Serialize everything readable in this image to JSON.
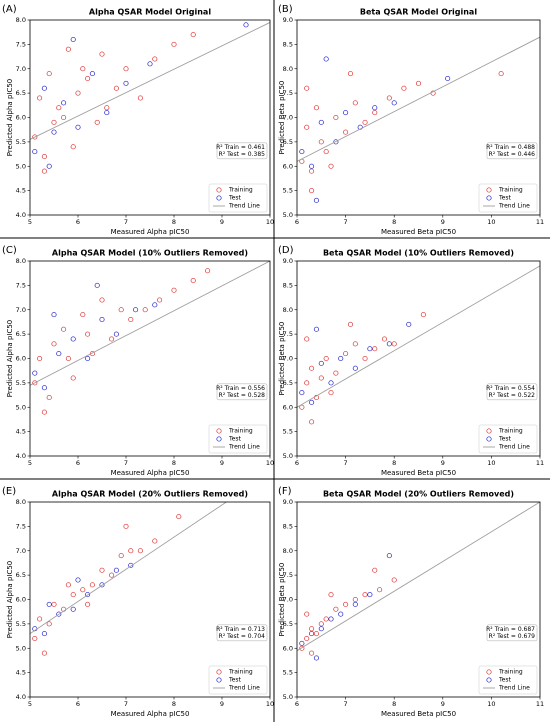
{
  "chart_data": [
    {
      "type": "scatter",
      "label": "(A)",
      "title": "Alpha QSAR Model Original",
      "xlabel": "Measured Alpha pIC50",
      "ylabel": "Predicted Alpha pIC50",
      "xlim": [
        5,
        10
      ],
      "ylim": [
        4,
        8
      ],
      "xticks": [
        5,
        6,
        7,
        8,
        9,
        10
      ],
      "yticks": [
        {
          "value": 4,
          "label": "4.0"
        },
        {
          "value": 4.5,
          "label": "4.5"
        },
        {
          "value": 5,
          "label": "5.0"
        },
        {
          "value": 5.5,
          "label": "5.5"
        },
        {
          "value": 6,
          "label": "6.0"
        },
        {
          "value": 6.5,
          "label": "6.5"
        },
        {
          "value": 7,
          "label": "7.0"
        },
        {
          "value": 7.5,
          "label": "7.5"
        },
        {
          "value": 8,
          "label": "8.0"
        }
      ],
      "annotations": [
        "R² Train = 0.461",
        "R² Test = 0.385"
      ],
      "legend": "lower right",
      "series": [
        {
          "name": "Training",
          "color": "#e03030",
          "x": [
            5.1,
            5.2,
            5.3,
            5.4,
            5.5,
            5.6,
            5.8,
            5.9,
            6.0,
            6.2,
            6.4,
            6.5,
            6.8,
            7.0,
            7.3,
            7.6,
            8.0,
            8.4,
            5.3,
            5.7,
            6.1,
            6.6
          ],
          "values": [
            5.6,
            6.4,
            5.2,
            6.9,
            5.9,
            6.2,
            7.4,
            5.4,
            6.5,
            6.8,
            5.9,
            7.3,
            6.6,
            7.0,
            6.4,
            7.2,
            7.5,
            7.7,
            4.9,
            6.0,
            7.0,
            6.2
          ]
        },
        {
          "name": "Test",
          "color": "#2020d0",
          "x": [
            5.1,
            5.3,
            5.5,
            5.7,
            6.0,
            6.3,
            6.6,
            7.0,
            7.5,
            5.9,
            9.5,
            5.4
          ],
          "values": [
            5.3,
            6.6,
            5.7,
            6.3,
            5.8,
            6.9,
            6.1,
            6.7,
            7.1,
            7.6,
            7.9,
            5.0
          ]
        },
        {
          "name": "Trend Line",
          "color": "#a0a0a0",
          "type": "line",
          "x": [
            5,
            10
          ],
          "values": [
            5.55,
            7.95
          ]
        }
      ]
    },
    {
      "type": "scatter",
      "label": "(B)",
      "title": "Beta QSAR Model Original",
      "xlabel": "Measured Beta pIC50",
      "ylabel": "Predicted Beta pIC50",
      "xlim": [
        6,
        11
      ],
      "ylim": [
        5,
        9
      ],
      "xticks": [
        6,
        7,
        8,
        9,
        10,
        11
      ],
      "yticks": [
        {
          "value": 5,
          "label": "5.0"
        },
        {
          "value": 5.5,
          "label": "5.5"
        },
        {
          "value": 6,
          "label": "6.0"
        },
        {
          "value": 6.5,
          "label": "6.5"
        },
        {
          "value": 7,
          "label": "7.0"
        },
        {
          "value": 7.5,
          "label": "7.5"
        },
        {
          "value": 8,
          "label": "8.0"
        },
        {
          "value": 8.5,
          "label": "8.5"
        },
        {
          "value": 9,
          "label": "9.0"
        }
      ],
      "annotations": [
        "R² Train = 0.488",
        "R² Test = 0.446"
      ],
      "legend": "lower right",
      "series": [
        {
          "name": "Training",
          "color": "#e03030",
          "x": [
            6.1,
            6.2,
            6.3,
            6.4,
            6.5,
            6.6,
            6.8,
            7.0,
            7.2,
            7.4,
            7.6,
            7.9,
            8.2,
            8.5,
            8.8,
            6.3,
            6.7,
            7.1,
            10.2,
            6.2
          ],
          "values": [
            6.1,
            6.8,
            5.9,
            7.2,
            6.5,
            6.3,
            7.0,
            6.7,
            7.3,
            6.9,
            7.1,
            7.4,
            7.6,
            7.7,
            7.5,
            5.5,
            6.0,
            7.9,
            7.9,
            7.6
          ]
        },
        {
          "name": "Test",
          "color": "#2020d0",
          "x": [
            6.1,
            6.3,
            6.5,
            6.8,
            7.0,
            7.3,
            7.6,
            8.0,
            9.1,
            6.4,
            6.6
          ],
          "values": [
            6.3,
            6.0,
            6.9,
            6.5,
            7.1,
            6.8,
            7.2,
            7.3,
            7.8,
            5.3,
            8.2
          ]
        },
        {
          "name": "Trend Line",
          "color": "#a0a0a0",
          "type": "line",
          "x": [
            6,
            11
          ],
          "values": [
            6.1,
            8.65
          ]
        }
      ]
    },
    {
      "type": "scatter",
      "label": "(C)",
      "title": "Alpha QSAR Model (10% Outliers Removed)",
      "xlabel": "Measured Alpha pIC50",
      "ylabel": "Predicted Alpha pIC50",
      "xlim": [
        5,
        10
      ],
      "ylim": [
        4,
        8
      ],
      "xticks": [
        5,
        6,
        7,
        8,
        9,
        10
      ],
      "yticks": [
        {
          "value": 4,
          "label": "4.0"
        },
        {
          "value": 4.5,
          "label": "4.5"
        },
        {
          "value": 5,
          "label": "5.0"
        },
        {
          "value": 5.5,
          "label": "5.5"
        },
        {
          "value": 6,
          "label": "6.0"
        },
        {
          "value": 6.5,
          "label": "6.5"
        },
        {
          "value": 7,
          "label": "7.0"
        },
        {
          "value": 7.5,
          "label": "7.5"
        },
        {
          "value": 8,
          "label": "8.0"
        }
      ],
      "annotations": [
        "R² Train = 0.556",
        "R² Test = 0.528"
      ],
      "legend": "lower right",
      "series": [
        {
          "name": "Training",
          "color": "#e03030",
          "x": [
            5.1,
            5.2,
            5.4,
            5.5,
            5.7,
            5.9,
            6.1,
            6.3,
            6.5,
            6.7,
            6.9,
            7.1,
            7.4,
            7.7,
            8.0,
            8.4,
            8.7,
            5.3,
            5.8,
            6.2
          ],
          "values": [
            5.5,
            6.0,
            5.2,
            6.3,
            6.6,
            5.6,
            6.9,
            6.1,
            7.2,
            6.4,
            7.0,
            6.8,
            7.0,
            7.2,
            7.4,
            7.6,
            7.8,
            4.9,
            6.0,
            6.5
          ]
        },
        {
          "name": "Test",
          "color": "#2020d0",
          "x": [
            5.1,
            5.3,
            5.6,
            5.9,
            6.2,
            6.5,
            6.8,
            7.2,
            7.6,
            5.5,
            6.4
          ],
          "values": [
            5.7,
            5.4,
            6.1,
            6.4,
            6.0,
            6.8,
            6.5,
            7.0,
            7.1,
            6.9,
            7.5
          ]
        },
        {
          "name": "Trend Line",
          "color": "#a0a0a0",
          "type": "line",
          "x": [
            5,
            10
          ],
          "values": [
            5.45,
            8.0
          ]
        }
      ]
    },
    {
      "type": "scatter",
      "label": "(D)",
      "title": "Beta QSAR Model (10% Outliers Removed)",
      "xlabel": "Measured Beta pIC50",
      "ylabel": "Predicted Beta pIC50",
      "xlim": [
        6,
        11
      ],
      "ylim": [
        5,
        9
      ],
      "xticks": [
        6,
        7,
        8,
        9,
        10,
        11
      ],
      "yticks": [
        {
          "value": 5,
          "label": "5.0"
        },
        {
          "value": 5.5,
          "label": "5.5"
        },
        {
          "value": 6,
          "label": "6.0"
        },
        {
          "value": 6.5,
          "label": "6.5"
        },
        {
          "value": 7,
          "label": "7.0"
        },
        {
          "value": 7.5,
          "label": "7.5"
        },
        {
          "value": 8,
          "label": "8.0"
        },
        {
          "value": 8.5,
          "label": "8.5"
        },
        {
          "value": 9,
          "label": "9.0"
        }
      ],
      "annotations": [
        "R² Train = 0.554",
        "R² Test = 0.522"
      ],
      "legend": "lower right",
      "series": [
        {
          "name": "Training",
          "color": "#e03030",
          "x": [
            6.1,
            6.2,
            6.3,
            6.4,
            6.5,
            6.6,
            6.8,
            7.0,
            7.2,
            7.4,
            7.6,
            7.8,
            8.0,
            8.6,
            6.3,
            6.7,
            7.1,
            6.2
          ],
          "values": [
            6.0,
            6.5,
            6.8,
            6.2,
            6.6,
            7.0,
            6.7,
            7.1,
            7.3,
            7.0,
            7.2,
            7.4,
            7.3,
            7.9,
            5.7,
            6.3,
            7.7,
            7.4
          ]
        },
        {
          "name": "Test",
          "color": "#2020d0",
          "x": [
            6.1,
            6.3,
            6.5,
            6.7,
            6.9,
            7.2,
            7.5,
            7.9,
            8.3,
            6.4
          ],
          "values": [
            6.3,
            6.1,
            6.9,
            6.5,
            7.0,
            6.8,
            7.2,
            7.3,
            7.7,
            7.6
          ]
        },
        {
          "name": "Trend Line",
          "color": "#a0a0a0",
          "type": "line",
          "x": [
            6,
            11
          ],
          "values": [
            6.0,
            8.9
          ]
        }
      ]
    },
    {
      "type": "scatter",
      "label": "(E)",
      "title": "Alpha QSAR Model (20% Outliers Removed)",
      "xlabel": "Measured Alpha pIC50",
      "ylabel": "Predicted Alpha pIC50",
      "xlim": [
        5,
        10
      ],
      "ylim": [
        4,
        8
      ],
      "xticks": [
        5,
        6,
        7,
        8,
        9,
        10
      ],
      "yticks": [
        {
          "value": 4,
          "label": "4.0"
        },
        {
          "value": 4.5,
          "label": "4.5"
        },
        {
          "value": 5,
          "label": "5.0"
        },
        {
          "value": 5.5,
          "label": "5.5"
        },
        {
          "value": 6,
          "label": "6.0"
        },
        {
          "value": 6.5,
          "label": "6.5"
        },
        {
          "value": 7,
          "label": "7.0"
        },
        {
          "value": 7.5,
          "label": "7.5"
        },
        {
          "value": 8,
          "label": "8.0"
        }
      ],
      "annotations": [
        "R² Train = 0.713",
        "R² Test = 0.704"
      ],
      "legend": "lower right",
      "series": [
        {
          "name": "Training",
          "color": "#e03030",
          "x": [
            5.1,
            5.2,
            5.4,
            5.5,
            5.7,
            5.9,
            6.1,
            6.3,
            6.5,
            6.7,
            6.9,
            7.1,
            7.3,
            7.6,
            8.1,
            5.3,
            5.8,
            6.2,
            7.0
          ],
          "values": [
            5.2,
            5.6,
            5.5,
            5.9,
            5.8,
            6.1,
            6.2,
            6.3,
            6.6,
            6.5,
            6.9,
            7.0,
            7.0,
            7.2,
            7.7,
            4.9,
            6.3,
            5.9,
            7.5
          ]
        },
        {
          "name": "Test",
          "color": "#2020d0",
          "x": [
            5.1,
            5.3,
            5.6,
            5.9,
            6.2,
            6.5,
            6.8,
            7.1,
            5.4,
            6.0
          ],
          "values": [
            5.4,
            5.3,
            5.7,
            5.8,
            6.1,
            6.3,
            6.6,
            6.7,
            5.9,
            6.4
          ]
        },
        {
          "name": "Trend Line",
          "color": "#a0a0a0",
          "type": "line",
          "x": [
            5,
            10
          ],
          "values": [
            5.3,
            8.6
          ]
        }
      ]
    },
    {
      "type": "scatter",
      "label": "(F)",
      "title": "Beta QSAR Model (20% Outliers Removed)",
      "xlabel": "Measured Beta pIC50",
      "ylabel": "Predicted Beta pIC50",
      "xlim": [
        6,
        11
      ],
      "ylim": [
        5,
        9
      ],
      "xticks": [
        6,
        7,
        8,
        9,
        10,
        11
      ],
      "yticks": [
        {
          "value": 5,
          "label": "5.0"
        },
        {
          "value": 5.5,
          "label": "5.5"
        },
        {
          "value": 6,
          "label": "6.0"
        },
        {
          "value": 6.5,
          "label": "6.5"
        },
        {
          "value": 7,
          "label": "7.0"
        },
        {
          "value": 7.5,
          "label": "7.5"
        },
        {
          "value": 8,
          "label": "8.0"
        },
        {
          "value": 8.5,
          "label": "8.5"
        },
        {
          "value": 9,
          "label": "9.0"
        }
      ],
      "annotations": [
        "R² Train = 0.687",
        "R² Test = 0.679"
      ],
      "legend": "lower right",
      "series": [
        {
          "name": "Training",
          "color": "#e03030",
          "x": [
            6.1,
            6.2,
            6.3,
            6.4,
            6.5,
            6.6,
            6.8,
            7.0,
            7.2,
            7.4,
            7.7,
            8.0,
            6.3,
            6.7,
            6.2,
            7.6
          ],
          "values": [
            6.0,
            6.2,
            6.4,
            6.3,
            6.5,
            6.6,
            6.8,
            6.9,
            7.0,
            7.1,
            7.2,
            7.4,
            5.9,
            7.1,
            6.7,
            7.6
          ]
        },
        {
          "name": "Test",
          "color": "#2020d0",
          "x": [
            6.1,
            6.3,
            6.5,
            6.7,
            6.9,
            7.2,
            7.5,
            7.9,
            6.4
          ],
          "values": [
            6.1,
            6.3,
            6.4,
            6.6,
            6.7,
            6.9,
            7.1,
            7.9,
            5.8
          ]
        },
        {
          "name": "Trend Line",
          "color": "#a0a0a0",
          "type": "line",
          "x": [
            6,
            11
          ],
          "values": [
            5.95,
            9.0
          ]
        }
      ]
    }
  ]
}
